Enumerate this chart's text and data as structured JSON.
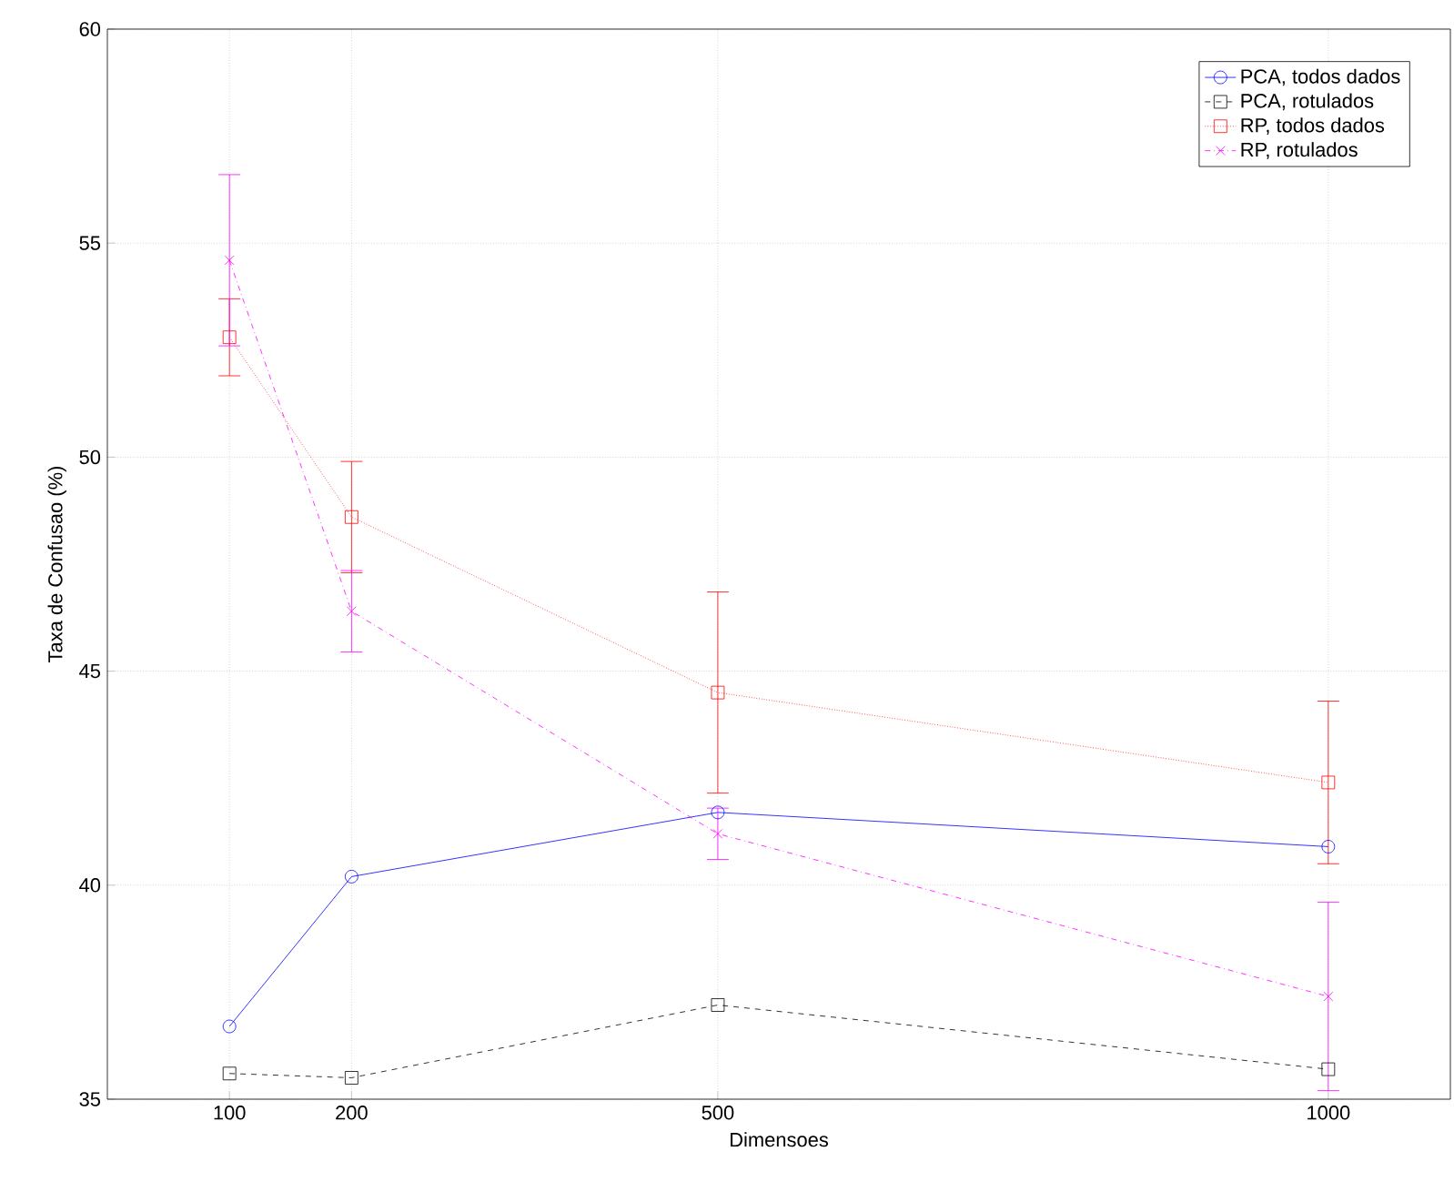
{
  "chart_data": {
    "type": "line",
    "xlabel": "Dimensoes",
    "ylabel": "Taxa de Confusao (%)",
    "x": [
      100,
      200,
      500,
      1000
    ],
    "xlim": [
      0,
      1100
    ],
    "ylim": [
      35,
      60
    ],
    "xticks": [
      100,
      200,
      500,
      1000
    ],
    "yticks": [
      35,
      40,
      45,
      50,
      55,
      60
    ],
    "grid": true,
    "legend": "top right",
    "series": [
      {
        "name": "PCA, todos dados",
        "color": "#0000ff",
        "marker": "circle",
        "line_style": "solid",
        "values": [
          36.7,
          40.2,
          41.7,
          40.9
        ]
      },
      {
        "name": "PCA, rotulados",
        "color": "#000000",
        "marker": "square",
        "line_style": "dashed",
        "values": [
          35.6,
          35.5,
          37.2,
          35.7
        ]
      },
      {
        "name": "RP, todos dados",
        "color": "#ff0000",
        "marker": "square",
        "line_style": "dotted",
        "values": [
          52.8,
          48.6,
          44.5,
          42.4
        ],
        "errors": [
          0.9,
          1.3,
          2.35,
          1.9
        ]
      },
      {
        "name": "RP, rotulados",
        "color": "#ff00ff",
        "marker": "cross",
        "line_style": "dashdot",
        "values": [
          54.6,
          46.4,
          41.2,
          37.4
        ],
        "errors": [
          2.0,
          0.95,
          0.6,
          2.2
        ]
      }
    ]
  }
}
